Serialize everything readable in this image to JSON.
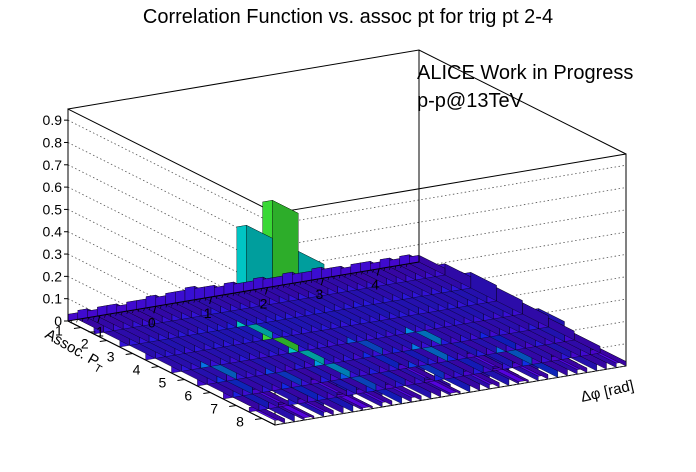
{
  "chart_data": {
    "type": "bar",
    "subtype": "lego3d",
    "title": "Correlation Function vs. assoc pt for trig pt 2-4",
    "annotations": [
      "ALICE Work in Progress",
      "p-p@13TeV"
    ],
    "xlabel": "Δφ [rad]",
    "ylabel": "Assoc. P",
    "ylabel_subscript": "T",
    "zlabel": "",
    "xlim": [
      -1.5708,
      4.7124
    ],
    "ylim": [
      0.5,
      8.5
    ],
    "zlim": [
      0,
      0.95
    ],
    "x_ticks": [
      "−1",
      "0",
      "1",
      "2",
      "3",
      "4"
    ],
    "y_ticks": [
      "1",
      "2",
      "3",
      "4",
      "5",
      "6",
      "7",
      "8"
    ],
    "z_ticks": [
      "0",
      "0.1",
      "0.2",
      "0.3",
      "0.4",
      "0.5",
      "0.6",
      "0.7",
      "0.8",
      "0.9"
    ],
    "grid": true,
    "colormap": "rainbow (violet low → red high)",
    "pt_bins": [
      1,
      2,
      3,
      4,
      5,
      6,
      7,
      8
    ],
    "dphi_bins": 36,
    "series": [
      {
        "name": "",
        "pt": 8,
        "values": [
          0.02,
          0.07,
          0.03,
          0.01,
          0.09,
          0.02,
          0.04,
          0.11,
          0.03,
          0.01,
          0.06,
          0.02,
          0.13,
          0.04,
          0.02,
          0.08,
          0.03,
          0.05,
          0.01,
          0.12,
          0.03,
          0.06,
          0.02,
          0.09,
          0.04,
          0.01,
          0.07,
          0.02,
          0.16,
          0.03,
          0.05,
          0.02,
          0.08,
          0.03,
          0.04,
          0.02
        ]
      },
      {
        "name": "",
        "pt": 7,
        "values": [
          0.03,
          0.12,
          0.05,
          0.02,
          0.08,
          0.03,
          0.15,
          0.04,
          0.06,
          0.02,
          0.1,
          0.03,
          0.22,
          0.06,
          0.04,
          0.11,
          0.03,
          0.07,
          0.02,
          0.18,
          0.04,
          0.09,
          0.03,
          0.13,
          0.05,
          0.02,
          0.1,
          0.03,
          0.25,
          0.04,
          0.06,
          0.03,
          0.09,
          0.04,
          0.05,
          0.03
        ]
      },
      {
        "name": "",
        "pt": 6,
        "values": [
          0.04,
          0.05,
          0.16,
          0.04,
          0.07,
          0.05,
          0.06,
          0.19,
          0.05,
          0.03,
          0.09,
          0.04,
          0.35,
          0.07,
          0.05,
          0.08,
          0.04,
          0.15,
          0.06,
          0.05,
          0.12,
          0.04,
          0.28,
          0.06,
          0.05,
          0.1,
          0.04,
          0.08,
          0.05,
          0.14,
          0.04,
          0.07,
          0.05,
          0.06,
          0.09,
          0.04
        ]
      },
      {
        "name": "",
        "pt": 5,
        "values": [
          0.05,
          0.08,
          0.06,
          0.27,
          0.06,
          0.07,
          0.05,
          0.09,
          0.06,
          0.05,
          0.08,
          0.06,
          0.45,
          0.08,
          0.06,
          0.07,
          0.05,
          0.06,
          0.22,
          0.07,
          0.06,
          0.08,
          0.05,
          0.07,
          0.31,
          0.06,
          0.05,
          0.07,
          0.06,
          0.08,
          0.05,
          0.06,
          0.07,
          0.05,
          0.06,
          0.05
        ]
      },
      {
        "name": "",
        "pt": 4,
        "values": [
          0.06,
          0.07,
          0.08,
          0.07,
          0.06,
          0.08,
          0.07,
          0.09,
          0.08,
          0.07,
          0.09,
          0.08,
          0.62,
          0.09,
          0.08,
          0.07,
          0.08,
          0.07,
          0.09,
          0.08,
          0.07,
          0.08,
          0.09,
          0.08,
          0.07,
          0.08,
          0.09,
          0.07,
          0.08,
          0.07,
          0.08,
          0.09,
          0.07,
          0.08,
          0.07,
          0.06
        ]
      },
      {
        "name": "",
        "pt": 3,
        "values": [
          0.07,
          0.08,
          0.07,
          0.09,
          0.08,
          0.07,
          0.09,
          0.08,
          0.1,
          0.09,
          0.1,
          0.11,
          0.45,
          0.11,
          0.1,
          0.09,
          0.1,
          0.09,
          0.08,
          0.09,
          0.1,
          0.09,
          0.08,
          0.09,
          0.1,
          0.09,
          0.08,
          0.09,
          0.08,
          0.09,
          0.08,
          0.07,
          0.08,
          0.09,
          0.08,
          0.07
        ]
      },
      {
        "name": "",
        "pt": 2,
        "values": [
          0.05,
          0.06,
          0.05,
          0.06,
          0.07,
          0.06,
          0.07,
          0.06,
          0.07,
          0.08,
          0.07,
          0.08,
          0.09,
          0.08,
          0.07,
          0.08,
          0.07,
          0.06,
          0.07,
          0.08,
          0.07,
          0.08,
          0.07,
          0.06,
          0.07,
          0.08,
          0.07,
          0.06,
          0.07,
          0.06,
          0.07,
          0.06,
          0.05,
          0.06,
          0.05,
          0.05
        ]
      },
      {
        "name": "",
        "pt": 1,
        "values": [
          0.03,
          0.04,
          0.03,
          0.04,
          0.04,
          0.03,
          0.04,
          0.04,
          0.05,
          0.04,
          0.05,
          0.05,
          0.06,
          0.05,
          0.05,
          0.04,
          0.05,
          0.04,
          0.04,
          0.05,
          0.04,
          0.04,
          0.05,
          0.04,
          0.04,
          0.05,
          0.04,
          0.04,
          0.03,
          0.04,
          0.04,
          0.03,
          0.04,
          0.03,
          0.04,
          0.03
        ]
      }
    ]
  }
}
